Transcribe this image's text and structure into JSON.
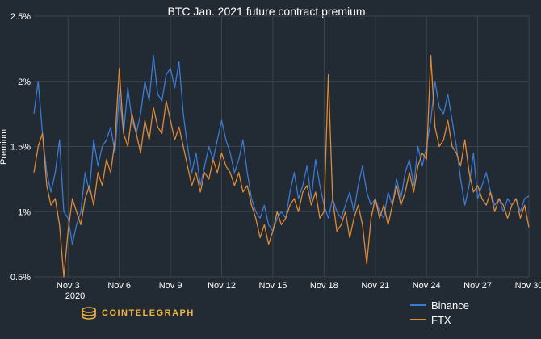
{
  "chart_data": {
    "type": "line",
    "title": "BTC Jan. 2021 future contract premium",
    "xlabel": "",
    "ylabel": "Premium",
    "x_ticks": [
      "Nov 3",
      "Nov 6",
      "Nov 9",
      "Nov 12",
      "Nov 15",
      "Nov 18",
      "Nov 21",
      "Nov 24",
      "Nov 27",
      "Nov 30"
    ],
    "x_tick_sub": "2020",
    "y_ticks": [
      "0.5%",
      "1%",
      "1.5%",
      "2%",
      "2.5%"
    ],
    "ylim": [
      0.5,
      2.5
    ],
    "x_range": [
      "2020-11-01",
      "2020-11-30"
    ],
    "grid": true,
    "legend": "bottom-right",
    "series": [
      {
        "name": "Binance",
        "color": "#3a7bd5",
        "points": [
          [
            "2020-11-01T00:00",
            1.75
          ],
          [
            "2020-11-01T06:00",
            2.0
          ],
          [
            "2020-11-01T12:00",
            1.6
          ],
          [
            "2020-11-01T18:00",
            1.3
          ],
          [
            "2020-11-02T00:00",
            1.15
          ],
          [
            "2020-11-02T06:00",
            1.3
          ],
          [
            "2020-11-02T12:00",
            1.55
          ],
          [
            "2020-11-02T18:00",
            1.0
          ],
          [
            "2020-11-03T00:00",
            0.95
          ],
          [
            "2020-11-03T06:00",
            0.75
          ],
          [
            "2020-11-03T12:00",
            0.9
          ],
          [
            "2020-11-03T18:00",
            1.0
          ],
          [
            "2020-11-04T00:00",
            1.3
          ],
          [
            "2020-11-04T06:00",
            1.15
          ],
          [
            "2020-11-04T12:00",
            1.55
          ],
          [
            "2020-11-04T18:00",
            1.35
          ],
          [
            "2020-11-05T00:00",
            1.5
          ],
          [
            "2020-11-05T06:00",
            1.55
          ],
          [
            "2020-11-05T12:00",
            1.65
          ],
          [
            "2020-11-05T18:00",
            1.45
          ],
          [
            "2020-11-06T00:00",
            1.9
          ],
          [
            "2020-11-06T06:00",
            1.6
          ],
          [
            "2020-11-06T12:00",
            1.95
          ],
          [
            "2020-11-06T18:00",
            1.7
          ],
          [
            "2020-11-07T00:00",
            1.6
          ],
          [
            "2020-11-07T06:00",
            1.75
          ],
          [
            "2020-11-07T12:00",
            2.0
          ],
          [
            "2020-11-07T18:00",
            1.85
          ],
          [
            "2020-11-08T00:00",
            2.2
          ],
          [
            "2020-11-08T06:00",
            1.9
          ],
          [
            "2020-11-08T12:00",
            1.85
          ],
          [
            "2020-11-08T18:00",
            2.05
          ],
          [
            "2020-11-09T00:00",
            2.1
          ],
          [
            "2020-11-09T06:00",
            1.95
          ],
          [
            "2020-11-09T12:00",
            2.15
          ],
          [
            "2020-11-09T18:00",
            1.75
          ],
          [
            "2020-11-10T00:00",
            1.5
          ],
          [
            "2020-11-10T06:00",
            1.3
          ],
          [
            "2020-11-10T12:00",
            1.45
          ],
          [
            "2020-11-10T18:00",
            1.2
          ],
          [
            "2020-11-11T00:00",
            1.35
          ],
          [
            "2020-11-11T06:00",
            1.5
          ],
          [
            "2020-11-11T12:00",
            1.4
          ],
          [
            "2020-11-11T18:00",
            1.55
          ],
          [
            "2020-11-12T00:00",
            1.7
          ],
          [
            "2020-11-12T06:00",
            1.55
          ],
          [
            "2020-11-12T12:00",
            1.45
          ],
          [
            "2020-11-12T18:00",
            1.3
          ],
          [
            "2020-11-13T00:00",
            1.4
          ],
          [
            "2020-11-13T06:00",
            1.55
          ],
          [
            "2020-11-13T12:00",
            1.3
          ],
          [
            "2020-11-13T18:00",
            1.1
          ],
          [
            "2020-11-14T00:00",
            1.0
          ],
          [
            "2020-11-14T06:00",
            0.95
          ],
          [
            "2020-11-14T12:00",
            1.05
          ],
          [
            "2020-11-14T18:00",
            0.9
          ],
          [
            "2020-11-15T00:00",
            0.85
          ],
          [
            "2020-11-15T06:00",
            0.95
          ],
          [
            "2020-11-15T12:00",
            1.0
          ],
          [
            "2020-11-15T18:00",
            0.95
          ],
          [
            "2020-11-16T00:00",
            1.15
          ],
          [
            "2020-11-16T06:00",
            1.3
          ],
          [
            "2020-11-16T12:00",
            1.1
          ],
          [
            "2020-11-16T18:00",
            1.2
          ],
          [
            "2020-11-17T00:00",
            1.35
          ],
          [
            "2020-11-17T06:00",
            1.1
          ],
          [
            "2020-11-17T12:00",
            1.4
          ],
          [
            "2020-11-17T18:00",
            1.2
          ],
          [
            "2020-11-18T00:00",
            1.05
          ],
          [
            "2020-11-18T06:00",
            0.95
          ],
          [
            "2020-11-18T12:00",
            1.1
          ],
          [
            "2020-11-18T18:00",
            1.0
          ],
          [
            "2020-11-19T00:00",
            0.95
          ],
          [
            "2020-11-19T06:00",
            1.05
          ],
          [
            "2020-11-19T12:00",
            1.15
          ],
          [
            "2020-11-19T18:00",
            1.0
          ],
          [
            "2020-11-20T00:00",
            1.2
          ],
          [
            "2020-11-20T06:00",
            1.35
          ],
          [
            "2020-11-20T12:00",
            1.15
          ],
          [
            "2020-11-20T18:00",
            1.05
          ],
          [
            "2020-11-21T00:00",
            1.1
          ],
          [
            "2020-11-21T06:00",
            1.0
          ],
          [
            "2020-11-21T12:00",
            0.95
          ],
          [
            "2020-11-21T18:00",
            1.15
          ],
          [
            "2020-11-22T00:00",
            1.05
          ],
          [
            "2020-11-22T06:00",
            1.25
          ],
          [
            "2020-11-22T12:00",
            1.1
          ],
          [
            "2020-11-22T18:00",
            1.3
          ],
          [
            "2020-11-23T00:00",
            1.4
          ],
          [
            "2020-11-23T06:00",
            1.2
          ],
          [
            "2020-11-23T12:00",
            1.5
          ],
          [
            "2020-11-23T18:00",
            1.35
          ],
          [
            "2020-11-24T00:00",
            1.5
          ],
          [
            "2020-11-24T06:00",
            1.7
          ],
          [
            "2020-11-24T12:00",
            2.0
          ],
          [
            "2020-11-24T18:00",
            1.8
          ],
          [
            "2020-11-25T00:00",
            1.75
          ],
          [
            "2020-11-25T06:00",
            1.9
          ],
          [
            "2020-11-25T12:00",
            1.7
          ],
          [
            "2020-11-25T18:00",
            1.5
          ],
          [
            "2020-11-26T00:00",
            1.25
          ],
          [
            "2020-11-26T06:00",
            1.05
          ],
          [
            "2020-11-26T12:00",
            1.2
          ],
          [
            "2020-11-26T18:00",
            1.45
          ],
          [
            "2020-11-27T00:00",
            1.1
          ],
          [
            "2020-11-27T06:00",
            1.2
          ],
          [
            "2020-11-27T12:00",
            1.3
          ],
          [
            "2020-11-27T18:00",
            1.15
          ],
          [
            "2020-11-28T00:00",
            1.05
          ],
          [
            "2020-11-28T06:00",
            1.1
          ],
          [
            "2020-11-28T12:00",
            1.0
          ],
          [
            "2020-11-28T18:00",
            1.1
          ],
          [
            "2020-11-29T00:00",
            1.05
          ],
          [
            "2020-11-29T06:00",
            1.1
          ],
          [
            "2020-11-29T12:00",
            1.0
          ],
          [
            "2020-11-29T18:00",
            1.1
          ],
          [
            "2020-11-30T00:00",
            1.12
          ]
        ]
      },
      {
        "name": "FTX",
        "color": "#e08a34",
        "points": [
          [
            "2020-11-01T00:00",
            1.3
          ],
          [
            "2020-11-01T06:00",
            1.5
          ],
          [
            "2020-11-01T12:00",
            1.6
          ],
          [
            "2020-11-01T18:00",
            1.2
          ],
          [
            "2020-11-02T00:00",
            1.05
          ],
          [
            "2020-11-02T06:00",
            1.1
          ],
          [
            "2020-11-02T12:00",
            0.9
          ],
          [
            "2020-11-02T18:00",
            0.5
          ],
          [
            "2020-11-03T00:00",
            0.85
          ],
          [
            "2020-11-03T06:00",
            1.1
          ],
          [
            "2020-11-03T12:00",
            1.0
          ],
          [
            "2020-11-03T18:00",
            0.9
          ],
          [
            "2020-11-04T00:00",
            1.1
          ],
          [
            "2020-11-04T06:00",
            1.2
          ],
          [
            "2020-11-04T12:00",
            1.05
          ],
          [
            "2020-11-04T18:00",
            1.3
          ],
          [
            "2020-11-05T00:00",
            1.2
          ],
          [
            "2020-11-05T06:00",
            1.4
          ],
          [
            "2020-11-05T12:00",
            1.3
          ],
          [
            "2020-11-05T18:00",
            1.55
          ],
          [
            "2020-11-06T00:00",
            2.1
          ],
          [
            "2020-11-06T06:00",
            1.6
          ],
          [
            "2020-11-06T12:00",
            1.5
          ],
          [
            "2020-11-06T18:00",
            1.75
          ],
          [
            "2020-11-07T00:00",
            1.6
          ],
          [
            "2020-11-07T06:00",
            1.45
          ],
          [
            "2020-11-07T12:00",
            1.7
          ],
          [
            "2020-11-07T18:00",
            1.55
          ],
          [
            "2020-11-08T00:00",
            1.8
          ],
          [
            "2020-11-08T06:00",
            1.65
          ],
          [
            "2020-11-08T12:00",
            1.6
          ],
          [
            "2020-11-08T18:00",
            1.85
          ],
          [
            "2020-11-09T00:00",
            1.7
          ],
          [
            "2020-11-09T06:00",
            1.55
          ],
          [
            "2020-11-09T12:00",
            1.65
          ],
          [
            "2020-11-09T18:00",
            1.5
          ],
          [
            "2020-11-10T00:00",
            1.35
          ],
          [
            "2020-11-10T06:00",
            1.2
          ],
          [
            "2020-11-10T12:00",
            1.3
          ],
          [
            "2020-11-10T18:00",
            1.15
          ],
          [
            "2020-11-11T00:00",
            1.3
          ],
          [
            "2020-11-11T06:00",
            1.25
          ],
          [
            "2020-11-11T12:00",
            1.4
          ],
          [
            "2020-11-11T18:00",
            1.3
          ],
          [
            "2020-11-12T00:00",
            1.45
          ],
          [
            "2020-11-12T06:00",
            1.35
          ],
          [
            "2020-11-12T12:00",
            1.3
          ],
          [
            "2020-11-12T18:00",
            1.2
          ],
          [
            "2020-11-13T00:00",
            1.3
          ],
          [
            "2020-11-13T06:00",
            1.15
          ],
          [
            "2020-11-13T12:00",
            1.2
          ],
          [
            "2020-11-13T18:00",
            1.05
          ],
          [
            "2020-11-14T00:00",
            0.95
          ],
          [
            "2020-11-14T06:00",
            0.8
          ],
          [
            "2020-11-14T12:00",
            0.9
          ],
          [
            "2020-11-14T18:00",
            0.75
          ],
          [
            "2020-11-15T00:00",
            0.85
          ],
          [
            "2020-11-15T06:00",
            1.0
          ],
          [
            "2020-11-15T12:00",
            0.9
          ],
          [
            "2020-11-15T18:00",
            0.95
          ],
          [
            "2020-11-16T00:00",
            1.05
          ],
          [
            "2020-11-16T06:00",
            1.1
          ],
          [
            "2020-11-16T12:00",
            1.0
          ],
          [
            "2020-11-16T18:00",
            1.15
          ],
          [
            "2020-11-17T00:00",
            1.2
          ],
          [
            "2020-11-17T06:00",
            1.05
          ],
          [
            "2020-11-17T12:00",
            1.15
          ],
          [
            "2020-11-17T18:00",
            0.95
          ],
          [
            "2020-11-18T00:00",
            1.0
          ],
          [
            "2020-11-18T06:00",
            2.05
          ],
          [
            "2020-11-18T12:00",
            1.1
          ],
          [
            "2020-11-18T18:00",
            0.85
          ],
          [
            "2020-11-19T00:00",
            0.9
          ],
          [
            "2020-11-19T06:00",
            1.0
          ],
          [
            "2020-11-19T12:00",
            0.8
          ],
          [
            "2020-11-19T18:00",
            0.95
          ],
          [
            "2020-11-20T00:00",
            1.05
          ],
          [
            "2020-11-20T06:00",
            0.9
          ],
          [
            "2020-11-20T12:00",
            0.6
          ],
          [
            "2020-11-20T18:00",
            0.95
          ],
          [
            "2020-11-21T00:00",
            1.1
          ],
          [
            "2020-11-21T06:00",
            0.95
          ],
          [
            "2020-11-21T12:00",
            1.05
          ],
          [
            "2020-11-21T18:00",
            0.9
          ],
          [
            "2020-11-22T00:00",
            1.05
          ],
          [
            "2020-11-22T06:00",
            1.2
          ],
          [
            "2020-11-22T12:00",
            1.05
          ],
          [
            "2020-11-22T18:00",
            1.15
          ],
          [
            "2020-11-23T00:00",
            1.3
          ],
          [
            "2020-11-23T06:00",
            1.15
          ],
          [
            "2020-11-23T12:00",
            1.35
          ],
          [
            "2020-11-23T18:00",
            1.45
          ],
          [
            "2020-11-24T00:00",
            1.4
          ],
          [
            "2020-11-24T06:00",
            2.2
          ],
          [
            "2020-11-24T12:00",
            1.65
          ],
          [
            "2020-11-24T18:00",
            1.5
          ],
          [
            "2020-11-25T00:00",
            1.55
          ],
          [
            "2020-11-25T06:00",
            1.7
          ],
          [
            "2020-11-25T12:00",
            1.5
          ],
          [
            "2020-11-25T18:00",
            1.45
          ],
          [
            "2020-11-26T00:00",
            1.35
          ],
          [
            "2020-11-26T06:00",
            1.55
          ],
          [
            "2020-11-26T12:00",
            1.3
          ],
          [
            "2020-11-26T18:00",
            1.15
          ],
          [
            "2020-11-27T00:00",
            1.2
          ],
          [
            "2020-11-27T06:00",
            1.1
          ],
          [
            "2020-11-27T12:00",
            1.05
          ],
          [
            "2020-11-27T18:00",
            1.15
          ],
          [
            "2020-11-28T00:00",
            1.0
          ],
          [
            "2020-11-28T06:00",
            1.1
          ],
          [
            "2020-11-28T12:00",
            1.05
          ],
          [
            "2020-11-28T18:00",
            0.95
          ],
          [
            "2020-11-29T00:00",
            1.05
          ],
          [
            "2020-11-29T06:00",
            1.1
          ],
          [
            "2020-11-29T12:00",
            0.95
          ],
          [
            "2020-11-29T18:00",
            1.05
          ],
          [
            "2020-11-30T00:00",
            0.88
          ]
        ]
      }
    ]
  },
  "logo": {
    "text": "COINTELEGRAPH",
    "color": "#f2b33d"
  },
  "style": {
    "background": "#222a33",
    "grid": "#3a4450",
    "text": "#ffffff"
  }
}
